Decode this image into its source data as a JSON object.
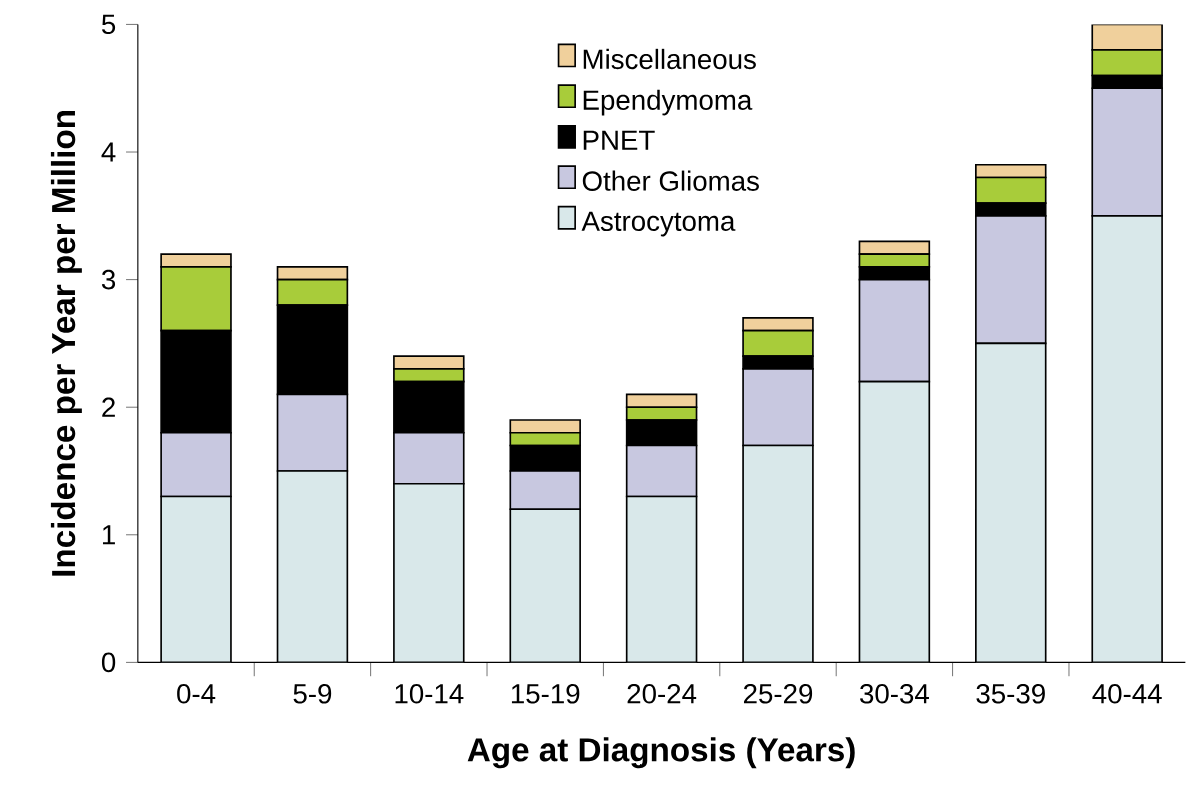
{
  "chart_data": {
    "type": "bar",
    "stacked": true,
    "xlabel": "Age at Diagnosis (Years)",
    "ylabel": "Incidence per Year per Million",
    "categories": [
      "0-4",
      "5-9",
      "10-14",
      "15-19",
      "20-24",
      "25-29",
      "30-34",
      "35-39",
      "40-44"
    ],
    "series": [
      {
        "name": "Astrocytoma",
        "color": "#d9e8ea",
        "values": [
          1.3,
          1.5,
          1.4,
          1.2,
          1.3,
          1.7,
          2.2,
          2.5,
          3.5
        ]
      },
      {
        "name": "Other Gliomas",
        "color": "#c8c8e0",
        "values": [
          0.5,
          0.6,
          0.4,
          0.3,
          0.4,
          0.6,
          0.8,
          1.0,
          1.0
        ]
      },
      {
        "name": "PNET",
        "color": "#000000",
        "values": [
          0.8,
          0.7,
          0.4,
          0.2,
          0.2,
          0.1,
          0.1,
          0.1,
          0.1
        ]
      },
      {
        "name": "Ependymoma",
        "color": "#a8cc3a",
        "values": [
          0.5,
          0.2,
          0.1,
          0.1,
          0.1,
          0.2,
          0.1,
          0.2,
          0.2
        ]
      },
      {
        "name": "Miscellaneous",
        "color": "#f0d09c",
        "values": [
          0.1,
          0.1,
          0.1,
          0.1,
          0.1,
          0.1,
          0.1,
          0.1,
          0.2
        ]
      }
    ],
    "ylim": [
      0,
      5
    ],
    "yticks": [
      0,
      1,
      2,
      3,
      4,
      5
    ],
    "legend": "top",
    "grid": false
  }
}
